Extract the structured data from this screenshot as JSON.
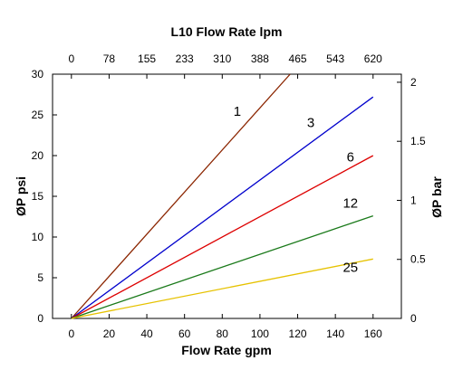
{
  "chart_data": {
    "type": "line",
    "title": "L10  Flow Rate lpm",
    "xlabel": "Flow Rate gpm",
    "ylabel": "ØP psi",
    "ylabel_right": "ØP bar",
    "xlim": [
      -10,
      175
    ],
    "ylim": [
      0,
      30
    ],
    "xticks": [
      "0",
      "20",
      "40",
      "60",
      "80",
      "100",
      "120",
      "140",
      "160"
    ],
    "yticks": [
      "0",
      "5",
      "10",
      "15",
      "20",
      "25",
      "30"
    ],
    "top_ticks": [
      "0",
      "78",
      "155",
      "233",
      "310",
      "388",
      "465",
      "543",
      "620"
    ],
    "right_ticks": [
      "0",
      "0.5",
      "1",
      "1.5",
      "2"
    ],
    "grid": false,
    "series": [
      {
        "name": "1",
        "color": "#8b2500",
        "x": [
          0,
          116
        ],
        "y": [
          0,
          30
        ]
      },
      {
        "name": "3",
        "color": "#0000cc",
        "x": [
          0,
          160
        ],
        "y": [
          0,
          27.2
        ]
      },
      {
        "name": "6",
        "color": "#dd0000",
        "x": [
          0,
          160
        ],
        "y": [
          0,
          20
        ]
      },
      {
        "name": "12",
        "color": "#1a7a1a",
        "x": [
          0,
          160
        ],
        "y": [
          0,
          12.6
        ]
      },
      {
        "name": "25",
        "color": "#e6c200",
        "x": [
          0,
          160
        ],
        "y": [
          0,
          7.3
        ]
      }
    ]
  }
}
